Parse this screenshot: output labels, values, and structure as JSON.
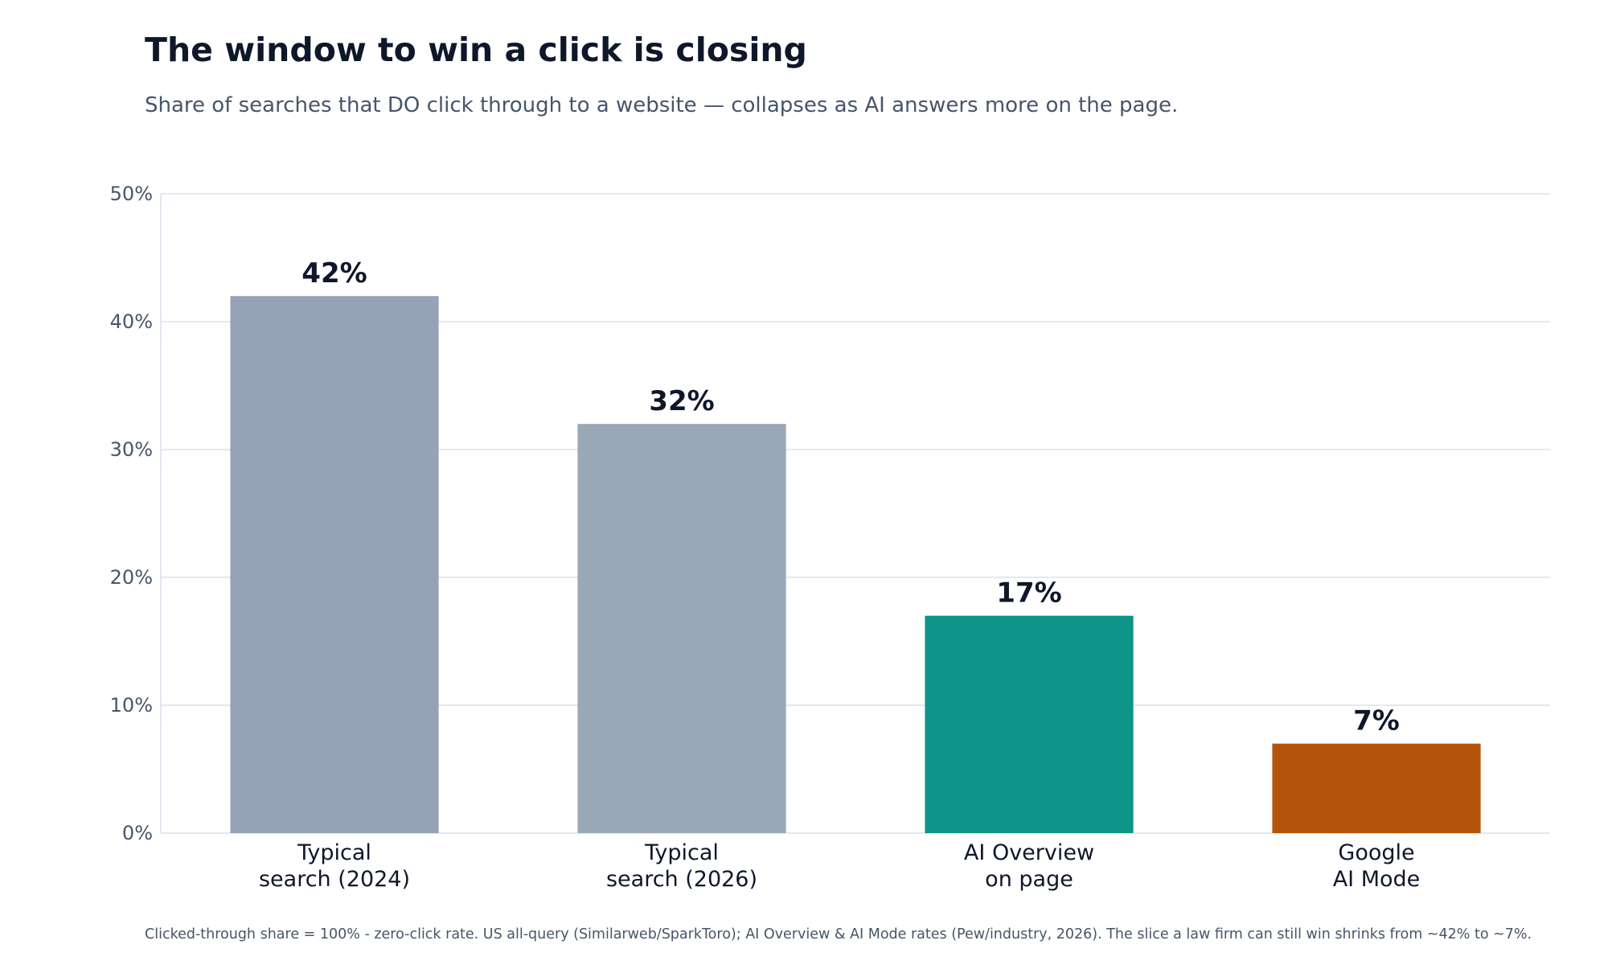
{
  "title": "The window to win a click is closing",
  "subtitle": "Share of searches that DO click through to a website — collapses as AI answers more on the page.",
  "footnote": "Clicked-through share = 100% - zero-click rate. US all-query (Similarweb/SparkToro); AI Overview & AI Mode rates (Pew/industry, 2026). The slice a law firm can still win shrinks from ~42% to ~7%.",
  "chart_data": {
    "type": "bar",
    "categories": [
      [
        "Typical",
        "search (2024)"
      ],
      [
        "Typical",
        "search (2026)"
      ],
      [
        "AI Overview",
        "on page"
      ],
      [
        "Google",
        "AI Mode"
      ]
    ],
    "values": [
      42,
      32,
      17,
      7
    ],
    "value_labels": [
      "42%",
      "32%",
      "17%",
      "7%"
    ],
    "colors": [
      "#94a3b8",
      "#9aa7b6",
      "#0e9488",
      "#b4540a"
    ],
    "ylim": [
      0,
      50
    ],
    "yticks": [
      0,
      10,
      20,
      30,
      40,
      50
    ],
    "ytick_labels": [
      "0%",
      "10%",
      "20%",
      "30%",
      "40%",
      "50%"
    ],
    "grid": true,
    "xlabel": "",
    "ylabel": ""
  }
}
